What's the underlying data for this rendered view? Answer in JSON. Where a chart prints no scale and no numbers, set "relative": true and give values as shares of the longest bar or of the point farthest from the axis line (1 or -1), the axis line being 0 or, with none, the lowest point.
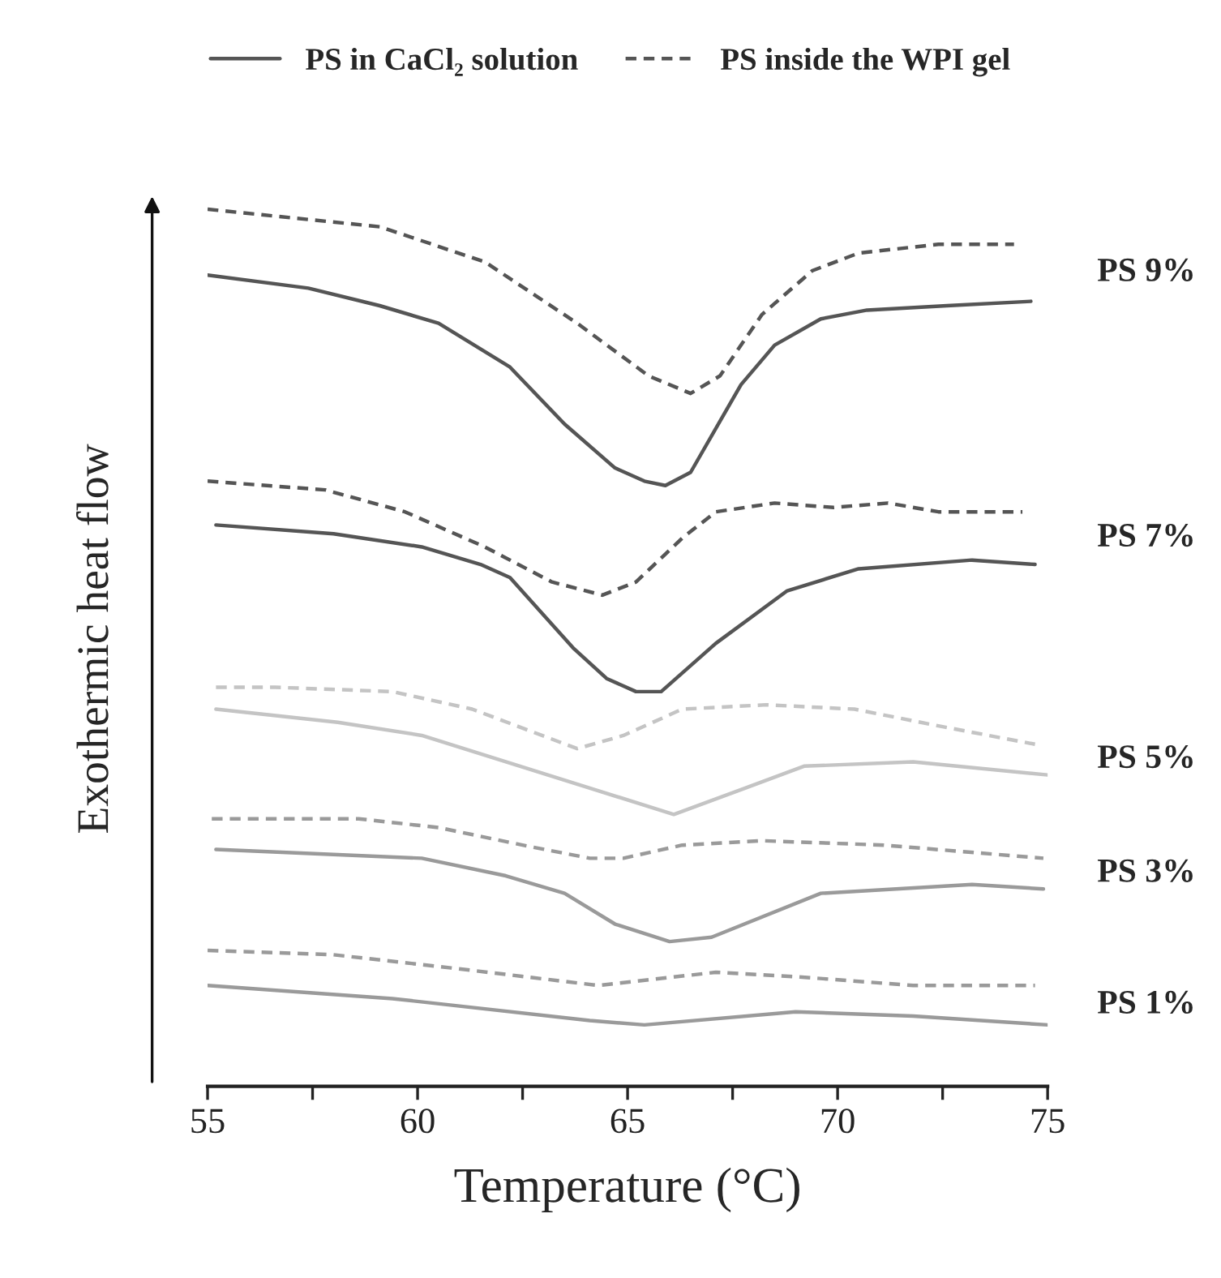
{
  "chart_data": {
    "type": "line",
    "relative": true,
    "xlabel": "Temperature (°C)",
    "ylabel": "Exothermic heat flow",
    "xlim": [
      55,
      75
    ],
    "xticks": [
      55,
      {
        "value": 57.5,
        "label": null
      },
      60,
      {
        "value": 62.5,
        "label": null
      },
      65,
      {
        "value": 67.5,
        "label": null
      },
      70,
      {
        "value": 72.5,
        "label": null
      },
      75
    ],
    "legend": "top",
    "grid": false,
    "marker": "none",
    "series": [
      {
        "name": "PS inside the WPI gel",
        "color": "#555555",
        "line_style": "dashed",
        "x": [
          55.0,
          59.1,
          61.6,
          63.8,
          65.5,
          66.5,
          67.2,
          68.2,
          69.4,
          70.5,
          72.4,
          74.2
        ],
        "values": [
          1.0,
          0.98,
          0.94,
          0.87,
          0.81,
          0.79,
          0.81,
          0.88,
          0.93,
          0.95,
          0.96,
          0.96
        ]
      },
      {
        "name": "PS in CaCl₂ solution",
        "color": "#555555",
        "line_style": "solid",
        "x": [
          55.0,
          57.4,
          59.1,
          60.5,
          62.2,
          63.5,
          64.7,
          65.4,
          65.9,
          66.5,
          67.7,
          68.5,
          69.6,
          70.7,
          72.6,
          74.6
        ],
        "values": [
          0.925,
          0.91,
          0.89,
          0.87,
          0.82,
          0.755,
          0.705,
          0.69,
          0.685,
          0.7,
          0.8,
          0.845,
          0.875,
          0.885,
          0.89,
          0.895
        ]
      },
      {
        "color": "#555555",
        "line_style": "dashed",
        "x": [
          55.0,
          57.8,
          59.7,
          61.6,
          63.2,
          64.4,
          65.2,
          66.3,
          67.1,
          68.5,
          69.9,
          71.2,
          72.4,
          74.4
        ],
        "values": [
          0.69,
          0.68,
          0.655,
          0.615,
          0.575,
          0.56,
          0.575,
          0.625,
          0.655,
          0.665,
          0.66,
          0.665,
          0.655,
          0.655
        ]
      },
      {
        "color": "#555555",
        "line_style": "solid",
        "x": [
          55.2,
          58.0,
          60.1,
          61.5,
          62.2,
          63.7,
          64.5,
          65.2,
          65.8,
          67.1,
          68.8,
          70.5,
          73.2,
          74.7
        ],
        "values": [
          0.64,
          0.63,
          0.615,
          0.595,
          0.58,
          0.5,
          0.465,
          0.45,
          0.45,
          0.505,
          0.565,
          0.59,
          0.6,
          0.595
        ]
      },
      {
        "color": "#c4c4c4",
        "line_style": "dashed",
        "x": [
          55.2,
          56.6,
          59.4,
          61.3,
          63.8,
          64.9,
          66.3,
          68.3,
          70.4,
          72.5,
          74.7
        ],
        "values": [
          0.455,
          0.455,
          0.45,
          0.43,
          0.385,
          0.4,
          0.43,
          0.435,
          0.43,
          0.41,
          0.39
        ]
      },
      {
        "color": "#c4c4c4",
        "line_style": "solid",
        "x": [
          55.2,
          58.1,
          60.1,
          62.1,
          64.1,
          66.1,
          67.8,
          69.2,
          71.8,
          75.0
        ],
        "values": [
          0.43,
          0.415,
          0.4,
          0.37,
          0.34,
          0.31,
          0.34,
          0.365,
          0.37,
          0.355
        ]
      },
      {
        "color": "#9a9a9a",
        "line_style": "dashed",
        "x": [
          55.1,
          58.6,
          60.5,
          62.5,
          64.1,
          64.9,
          66.3,
          68.2,
          71.1,
          74.9
        ],
        "values": [
          0.305,
          0.305,
          0.295,
          0.275,
          0.26,
          0.26,
          0.275,
          0.28,
          0.275,
          0.26
        ]
      },
      {
        "color": "#9a9a9a",
        "line_style": "solid",
        "x": [
          55.2,
          60.1,
          62.1,
          63.5,
          64.7,
          66.0,
          67.0,
          69.6,
          73.2,
          74.9
        ],
        "values": [
          0.27,
          0.26,
          0.24,
          0.22,
          0.185,
          0.165,
          0.17,
          0.22,
          0.23,
          0.225
        ]
      },
      {
        "color": "#9a9a9a",
        "line_style": "dashed",
        "x": [
          55.0,
          58.0,
          60.8,
          64.3,
          67.1,
          69.0,
          71.8,
          74.7
        ],
        "values": [
          0.155,
          0.15,
          0.135,
          0.115,
          0.13,
          0.125,
          0.115,
          0.115
        ]
      },
      {
        "color": "#9a9a9a",
        "line_style": "solid",
        "x": [
          55.0,
          59.4,
          64.1,
          65.4,
          69.0,
          71.8,
          75.0
        ],
        "values": [
          0.115,
          0.1,
          0.075,
          0.07,
          0.085,
          0.08,
          0.07
        ]
      }
    ],
    "annotations": [
      "PS 9%",
      "PS 7%",
      "PS 5%",
      "PS 3%",
      "PS 1%"
    ]
  }
}
